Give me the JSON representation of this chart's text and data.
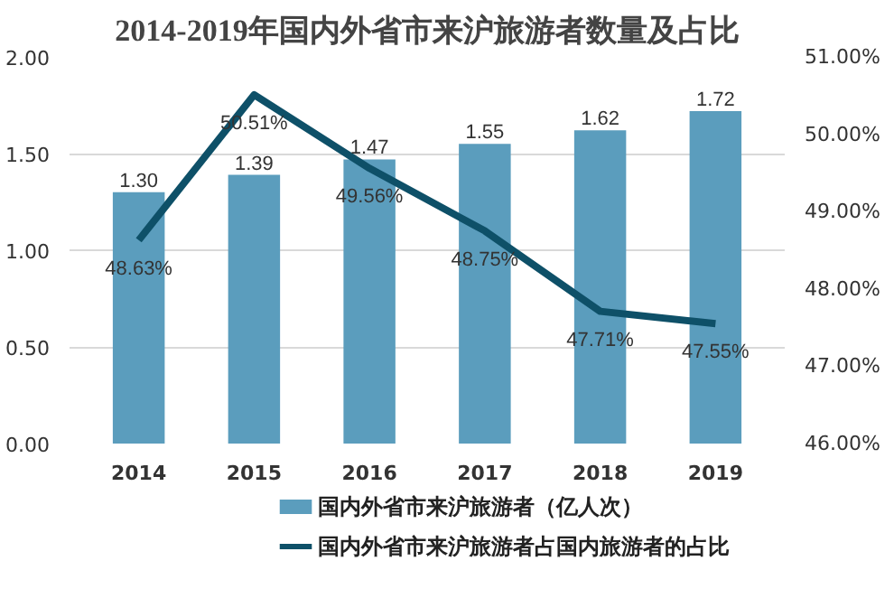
{
  "chart_data": {
    "type": "bar",
    "title": "2014-2019年国内外省市来沪旅游者数量及占比",
    "categories": [
      "2014",
      "2015",
      "2016",
      "2017",
      "2018",
      "2019"
    ],
    "series": [
      {
        "name": "国内外省市来沪旅游者（亿人次）",
        "color": "#5b9dbd",
        "values": [
          1.3,
          1.39,
          1.47,
          1.55,
          1.62,
          1.72
        ],
        "value_labels": [
          "1.30",
          "1.39",
          "1.47",
          "1.55",
          "1.62",
          "1.72"
        ]
      },
      {
        "name": "国内外省市来沪旅游者占国内旅游者的占比",
        "type": "line",
        "axis": "y2",
        "color": "#0e5068",
        "values": [
          48.63,
          50.51,
          49.56,
          48.75,
          47.71,
          47.55
        ],
        "value_labels": [
          "48.63%",
          "50.51%",
          "49.56%",
          "48.75%",
          "47.71%",
          "47.55%"
        ]
      }
    ],
    "ylim": [
      0,
      2
    ],
    "yticks": [
      {
        "value": 0,
        "label": "0.00"
      },
      {
        "value": 0.5,
        "label": "0.50"
      },
      {
        "value": 1,
        "label": "1.00"
      },
      {
        "value": 1.5,
        "label": "1.50"
      },
      {
        "value": 2,
        "label": "2.00"
      }
    ],
    "y2lim": [
      46,
      51
    ],
    "y2ticks": [
      {
        "value": 46,
        "label": "46.00%"
      },
      {
        "value": 47,
        "label": "47.00%"
      },
      {
        "value": 48,
        "label": "48.00%"
      },
      {
        "value": 49,
        "label": "49.00%"
      },
      {
        "value": 50,
        "label": "50.00%"
      },
      {
        "value": 51,
        "label": "51.00%"
      }
    ],
    "grid": "y",
    "legend": "bottom"
  }
}
